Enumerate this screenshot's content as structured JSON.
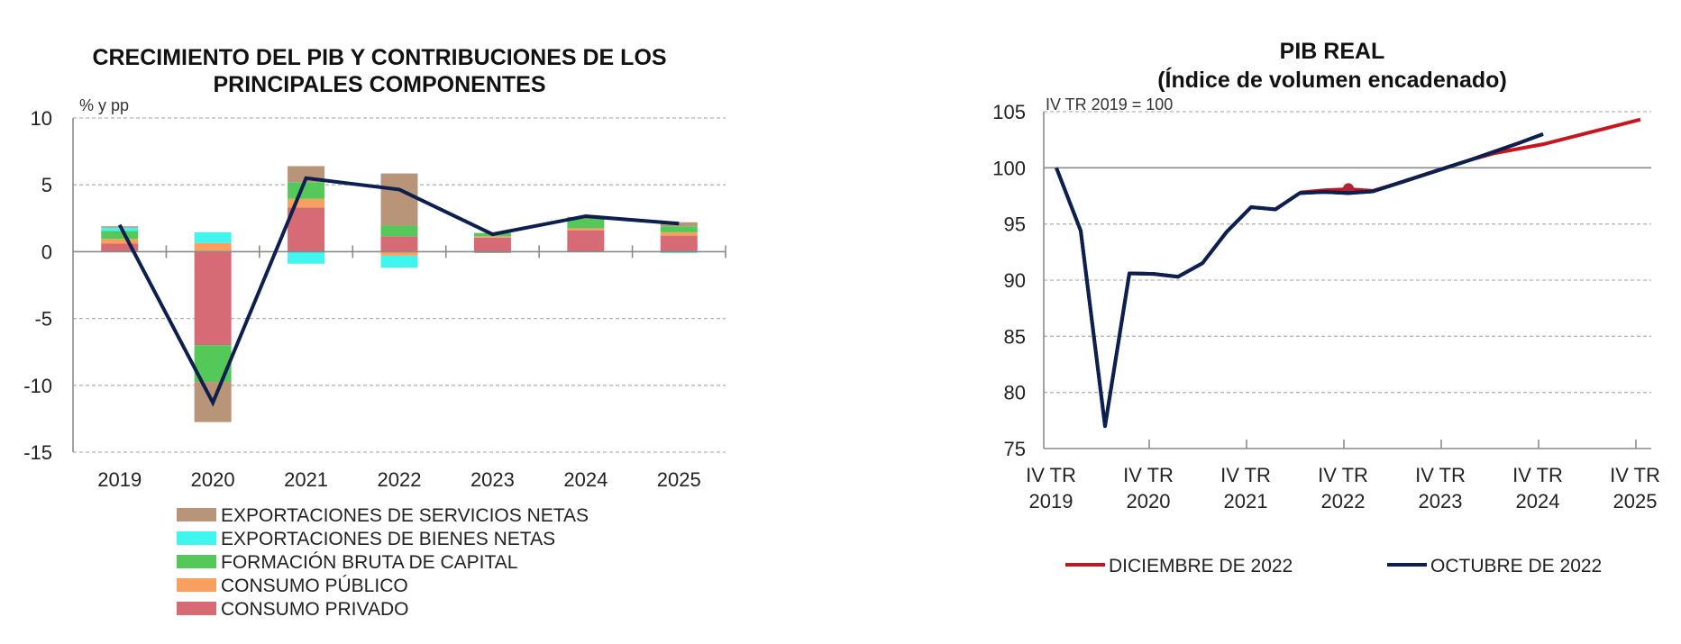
{
  "chart_data": [
    {
      "type": "bar",
      "stacked": true,
      "title": "CRECIMIENTO DEL PIB Y CONTRIBUCIONES DE LOS PRINCIPALES COMPONENTES",
      "title_lines": [
        "CRECIMIENTO DEL PIB Y CONTRIBUCIONES DE LOS",
        "PRINCIPALES COMPONENTES"
      ],
      "ylabel": "% y pp",
      "xlabel": "",
      "ylim": [
        -15,
        10
      ],
      "yticks": [
        10,
        5,
        0,
        -5,
        -10,
        -15
      ],
      "ytick_labels": [
        "10",
        "5",
        "0",
        "-5",
        "-10",
        "-15"
      ],
      "grid": true,
      "categories": [
        "2019",
        "2020",
        "2021",
        "2022",
        "2023",
        "2024",
        "2025"
      ],
      "series": [
        {
          "name": "CONSUMO PRIVADO",
          "color": "#D66B75",
          "values": [
            0.6,
            -7.0,
            3.3,
            1.15,
            1.05,
            1.6,
            1.2
          ]
        },
        {
          "name": "CONSUMO PÚBLICO",
          "color": "#F8A060",
          "values": [
            0.35,
            0.65,
            0.65,
            -0.3,
            0.1,
            0.15,
            0.25
          ]
        },
        {
          "name": "FORMACIÓN BRUTA DE CAPITAL",
          "color": "#55C85A",
          "values": [
            0.6,
            -2.75,
            1.25,
            0.8,
            0.25,
            0.7,
            0.45
          ]
        },
        {
          "name": "EXPORTACIONES DE BIENES NETAS",
          "color": "#3FF5EE",
          "values": [
            0.25,
            0.8,
            -0.9,
            -0.9,
            0.0,
            0.0,
            -0.1
          ]
        },
        {
          "name": "EXPORTACIONES DE SERVICIOS NETAS",
          "color": "#B89478",
          "values": [
            0.1,
            -3.0,
            1.2,
            3.9,
            -0.1,
            0.15,
            0.3
          ]
        }
      ],
      "line_series": {
        "name": "PIB",
        "color": "#0C1F4E",
        "values": [
          2.0,
          -11.3,
          5.5,
          4.65,
          1.3,
          2.65,
          2.1
        ]
      },
      "legend_order": [
        "EXPORTACIONES DE SERVICIOS NETAS",
        "EXPORTACIONES DE BIENES NETAS",
        "FORMACIÓN BRUTA DE CAPITAL",
        "CONSUMO PÚBLICO",
        "CONSUMO PRIVADO"
      ],
      "legend_position": "bottom"
    },
    {
      "type": "line",
      "title": "PIB REAL",
      "subtitle": "(Índice de volumen encadenado)",
      "annotation": "IV TR 2019 = 100",
      "ylim": [
        75,
        105
      ],
      "yticks": [
        105,
        100,
        95,
        90,
        85,
        80,
        75
      ],
      "ytick_labels": [
        "105",
        "100",
        "95",
        "90",
        "85",
        "80",
        "75"
      ],
      "reference_line": 100,
      "grid": true,
      "x_unit": "quarter index from IV TR 2019",
      "xlim": [
        0,
        24.5
      ],
      "xticks": [
        0,
        4,
        8,
        12,
        16,
        20,
        24
      ],
      "xtick_labels": [
        [
          "IV TR",
          "2019"
        ],
        [
          "IV TR",
          "2020"
        ],
        [
          "IV TR",
          "2021"
        ],
        [
          "IV TR",
          "2022"
        ],
        [
          "IV TR",
          "2023"
        ],
        [
          "IV TR",
          "2024"
        ],
        [
          "IV TR",
          "2025"
        ]
      ],
      "series": [
        {
          "name": "DICIEMBRE DE 2022",
          "color": "#C8141E",
          "x": [
            10,
            11,
            12,
            13,
            14,
            15,
            16,
            17,
            18,
            19,
            20,
            21,
            22,
            23,
            24
          ],
          "values": [
            97.8,
            98.0,
            98.1,
            97.95,
            98.6,
            99.3,
            100.0,
            100.7,
            101.3,
            101.7,
            102.1,
            102.65,
            103.2,
            103.75,
            104.3
          ],
          "marker_at": {
            "x": 12,
            "value": 98.15
          }
        },
        {
          "name": "OCTUBRE DE 2022",
          "color": "#0C1F4E",
          "x": [
            0,
            1,
            2,
            3,
            4,
            5,
            6,
            7,
            8,
            9,
            10,
            11,
            12,
            13,
            14,
            15,
            16,
            17,
            18,
            19,
            20
          ],
          "values": [
            100.0,
            94.4,
            77.0,
            90.6,
            90.55,
            90.3,
            91.5,
            94.3,
            96.5,
            96.3,
            97.75,
            97.85,
            97.75,
            97.9,
            98.6,
            99.3,
            100.0,
            100.7,
            101.45,
            102.2,
            103.0
          ]
        }
      ],
      "legend_order": [
        "DICIEMBRE DE 2022",
        "OCTUBRE DE 2022"
      ],
      "legend_position": "bottom"
    }
  ]
}
